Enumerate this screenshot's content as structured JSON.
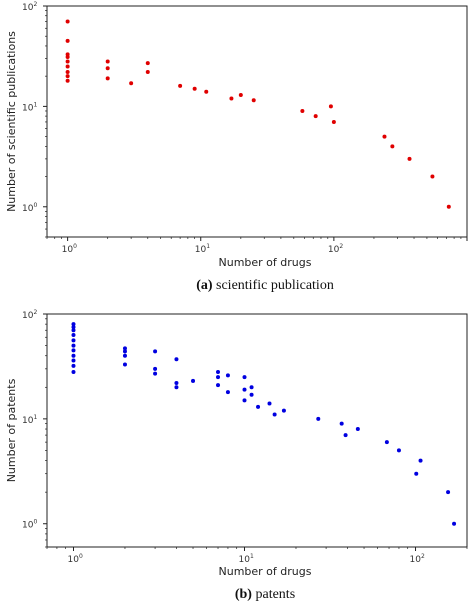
{
  "chart_data": [
    {
      "type": "scatter",
      "scale": "log-log",
      "color": "#e00000",
      "xlabel": "Number of drugs",
      "ylabel": "Number of scientific publications",
      "xlim": [
        0.7,
        1000
      ],
      "ylim": [
        0.5,
        100
      ],
      "x_ticks": [
        "10^0",
        "10^1",
        "10^2"
      ],
      "y_ticks": [
        "10^0",
        "10^1",
        "10^2"
      ],
      "caption_letter": "(a)",
      "caption_text": " scientific publication",
      "points": [
        {
          "x": 1,
          "y": 70
        },
        {
          "x": 1,
          "y": 45
        },
        {
          "x": 1,
          "y": 33
        },
        {
          "x": 1,
          "y": 31
        },
        {
          "x": 1,
          "y": 28
        },
        {
          "x": 1,
          "y": 25
        },
        {
          "x": 1,
          "y": 22
        },
        {
          "x": 1,
          "y": 20
        },
        {
          "x": 1,
          "y": 18
        },
        {
          "x": 2,
          "y": 28
        },
        {
          "x": 2,
          "y": 24
        },
        {
          "x": 2,
          "y": 19
        },
        {
          "x": 3,
          "y": 17
        },
        {
          "x": 4,
          "y": 27
        },
        {
          "x": 4,
          "y": 22
        },
        {
          "x": 7,
          "y": 16
        },
        {
          "x": 9,
          "y": 15
        },
        {
          "x": 11,
          "y": 14
        },
        {
          "x": 17,
          "y": 12
        },
        {
          "x": 20,
          "y": 13
        },
        {
          "x": 25,
          "y": 11.5
        },
        {
          "x": 58,
          "y": 9
        },
        {
          "x": 73,
          "y": 8
        },
        {
          "x": 95,
          "y": 10
        },
        {
          "x": 100,
          "y": 7
        },
        {
          "x": 240,
          "y": 5
        },
        {
          "x": 275,
          "y": 4
        },
        {
          "x": 370,
          "y": 3
        },
        {
          "x": 550,
          "y": 2
        },
        {
          "x": 730,
          "y": 1
        }
      ]
    },
    {
      "type": "scatter",
      "scale": "log-log",
      "color": "#0000e0",
      "xlabel": "Number of drugs",
      "ylabel": "Number of patents",
      "xlim": [
        0.7,
        200
      ],
      "ylim": [
        0.6,
        100
      ],
      "x_ticks": [
        "10^0",
        "10^1",
        "10^2"
      ],
      "y_ticks": [
        "10^0",
        "10^1",
        "10^2"
      ],
      "caption_letter": "(b)",
      "caption_text": " patents",
      "points": [
        {
          "x": 1,
          "y": 80
        },
        {
          "x": 1,
          "y": 75
        },
        {
          "x": 1,
          "y": 70
        },
        {
          "x": 1,
          "y": 63
        },
        {
          "x": 1,
          "y": 56
        },
        {
          "x": 1,
          "y": 50
        },
        {
          "x": 1,
          "y": 45
        },
        {
          "x": 1,
          "y": 40
        },
        {
          "x": 1,
          "y": 36
        },
        {
          "x": 1,
          "y": 32
        },
        {
          "x": 1,
          "y": 28
        },
        {
          "x": 2,
          "y": 47
        },
        {
          "x": 2,
          "y": 44
        },
        {
          "x": 2,
          "y": 40
        },
        {
          "x": 2,
          "y": 33
        },
        {
          "x": 3,
          "y": 44
        },
        {
          "x": 3,
          "y": 30
        },
        {
          "x": 3,
          "y": 27
        },
        {
          "x": 4,
          "y": 37
        },
        {
          "x": 4,
          "y": 22
        },
        {
          "x": 4,
          "y": 20
        },
        {
          "x": 5,
          "y": 23
        },
        {
          "x": 7,
          "y": 28
        },
        {
          "x": 7,
          "y": 25
        },
        {
          "x": 7,
          "y": 21
        },
        {
          "x": 8,
          "y": 26
        },
        {
          "x": 8,
          "y": 18
        },
        {
          "x": 10,
          "y": 25
        },
        {
          "x": 10,
          "y": 19
        },
        {
          "x": 10,
          "y": 15
        },
        {
          "x": 11,
          "y": 20
        },
        {
          "x": 11,
          "y": 17
        },
        {
          "x": 12,
          "y": 13
        },
        {
          "x": 14,
          "y": 14
        },
        {
          "x": 15,
          "y": 11
        },
        {
          "x": 17,
          "y": 12
        },
        {
          "x": 27,
          "y": 10
        },
        {
          "x": 37,
          "y": 9
        },
        {
          "x": 39,
          "y": 7
        },
        {
          "x": 46,
          "y": 8
        },
        {
          "x": 68,
          "y": 6
        },
        {
          "x": 80,
          "y": 5
        },
        {
          "x": 101,
          "y": 3
        },
        {
          "x": 107,
          "y": 4
        },
        {
          "x": 155,
          "y": 2
        },
        {
          "x": 168,
          "y": 1
        }
      ]
    }
  ]
}
